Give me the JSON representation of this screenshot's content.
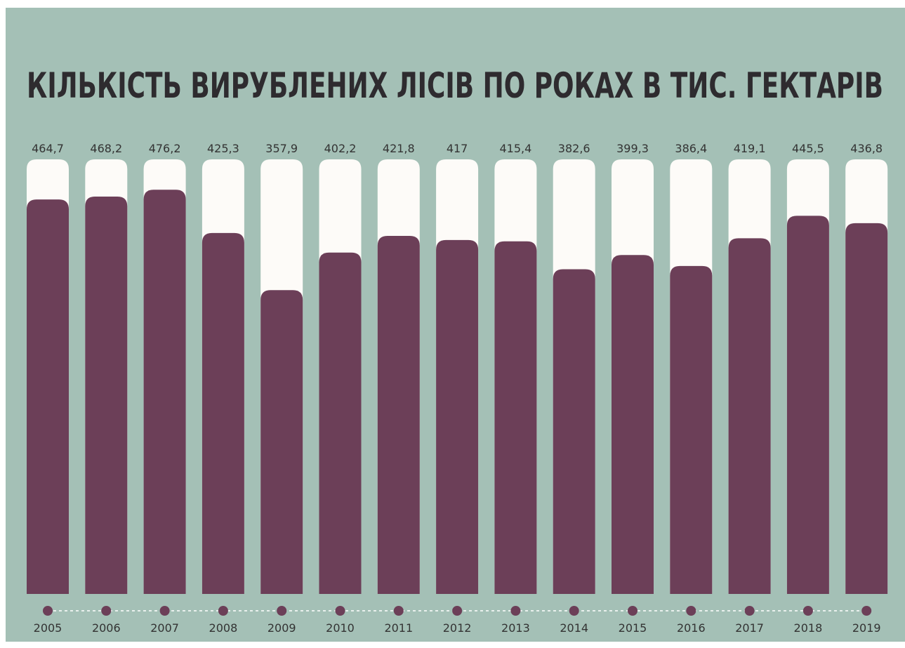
{
  "colors": {
    "background": "#a4c0b6",
    "bar_fill": "#6c3f58",
    "bar_track": "#fdfbf8",
    "title": "#2e2b2f",
    "dot": "#6c3f58",
    "connector": "#ffffff",
    "text": "#333333"
  },
  "chart_data": {
    "type": "bar",
    "title": "КІЛЬКІСТЬ ВИРУБЛЕНИХ ЛІСІВ ПО РОКАХ В ТИС. ГЕКТАРІВ",
    "categories": [
      "2005",
      "2006",
      "2007",
      "2008",
      "2009",
      "2010",
      "2011",
      "2012",
      "2013",
      "2014",
      "2015",
      "2016",
      "2017",
      "2018",
      "2019"
    ],
    "values": [
      464.7,
      468.2,
      476.2,
      425.3,
      357.9,
      402.2,
      421.8,
      417,
      415.4,
      382.6,
      399.3,
      386.4,
      419.1,
      445.5,
      436.8
    ],
    "value_labels": [
      "464,7",
      "468,2",
      "476,2",
      "425,3",
      "357,9",
      "402,2",
      "421,8",
      "417",
      "415,4",
      "382,6",
      "399,3",
      "386,4",
      "419,1",
      "445,5",
      "436,8"
    ],
    "xlabel": "",
    "ylabel": "",
    "grid": false,
    "legend": "none"
  }
}
